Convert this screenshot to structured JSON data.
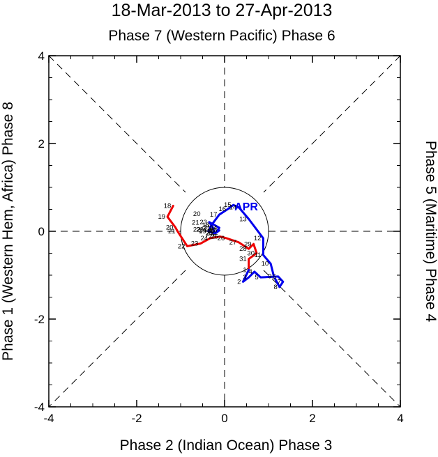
{
  "chart_data": {
    "type": "line",
    "title": "18-Mar-2013 to 27-Apr-2013",
    "subtitle": "Phase 7 (Western Pacific) Phase 6",
    "xlabel": "Phase 2 (Indian Ocean) Phase 3",
    "ylabel_left": "Phase 1 (Western Hem, Africa) Phase 8",
    "ylabel_right": "Phase 5 (Maritime) Phase 4",
    "xlim": [
      -4,
      4
    ],
    "ylim": [
      -4,
      4
    ],
    "xticks": [
      -4,
      -2,
      0,
      2,
      4
    ],
    "yticks": [
      -4,
      -2,
      0,
      2,
      4
    ],
    "xtick_labels": [
      "-4",
      "-2",
      "0",
      "2",
      "4"
    ],
    "ytick_labels": [
      "-4",
      "-2",
      "0",
      "2",
      "4"
    ],
    "unit_circle_radius": 1,
    "series": [
      {
        "name": "March",
        "color": "#ee0000",
        "points": [
          {
            "label": "18",
            "x": -1.17,
            "y": 0.58
          },
          {
            "label": "19",
            "x": -1.3,
            "y": 0.33
          },
          {
            "label": "20",
            "x": -1.12,
            "y": 0.09
          },
          {
            "label": "21",
            "x": -1.07,
            "y": 0.0
          },
          {
            "label": "22",
            "x": -0.85,
            "y": -0.34
          },
          {
            "label": "23",
            "x": -0.55,
            "y": -0.28
          },
          {
            "label": "24",
            "x": -0.33,
            "y": -0.16
          },
          {
            "label": "25",
            "x": -0.1,
            "y": -0.12
          },
          {
            "label": "26",
            "x": 0.05,
            "y": -0.16
          },
          {
            "label": "27",
            "x": 0.32,
            "y": -0.25
          },
          {
            "label": "28",
            "x": 0.55,
            "y": -0.4
          },
          {
            "label": "29",
            "x": 0.66,
            "y": -0.29
          },
          {
            "label": "30",
            "x": 0.73,
            "y": -0.5
          },
          {
            "label": "31",
            "x": 0.55,
            "y": -0.63
          }
        ],
        "extra_labels": [
          {
            "label": "20",
            "x": -0.5,
            "y": 0.4
          },
          {
            "label": "21",
            "x": -0.53,
            "y": 0.2
          },
          {
            "label": "22",
            "x": -0.5,
            "y": 0.04
          },
          {
            "label": "23",
            "x": -0.43,
            "y": 0.04
          },
          {
            "label": "24",
            "x": -0.37,
            "y": 0.02
          },
          {
            "label": "25",
            "x": -0.15,
            "y": -0.12
          }
        ]
      },
      {
        "name": "April",
        "color": "#0000ee",
        "month_label": "APR",
        "points": [
          {
            "label": "1",
            "x": 0.55,
            "y": -0.88
          },
          {
            "label": "2",
            "x": 0.42,
            "y": -1.15
          },
          {
            "label": "3",
            "x": 0.55,
            "y": -1.05
          },
          {
            "label": "4",
            "x": 0.68,
            "y": -0.92
          },
          {
            "label": "5",
            "x": 0.82,
            "y": -1.05
          },
          {
            "label": "6",
            "x": 1.22,
            "y": -1.03
          },
          {
            "label": "7",
            "x": 1.33,
            "y": -1.15
          },
          {
            "label": "8",
            "x": 1.25,
            "y": -1.27
          },
          {
            "label": "9",
            "x": 1.12,
            "y": -1.02
          },
          {
            "label": "10",
            "x": 1.05,
            "y": -0.74
          },
          {
            "label": "11",
            "x": 0.88,
            "y": -0.54
          },
          {
            "label": "12",
            "x": 0.88,
            "y": -0.16
          },
          {
            "label": "13",
            "x": 0.55,
            "y": 0.28
          },
          {
            "label": "14",
            "x": 0.32,
            "y": 0.55
          },
          {
            "label": "15",
            "x": 0.2,
            "y": 0.6
          },
          {
            "label": "16",
            "x": 0.08,
            "y": 0.51
          },
          {
            "label": "17",
            "x": -0.12,
            "y": 0.38
          },
          {
            "label": "18",
            "x": -0.3,
            "y": 0.14
          },
          {
            "label": "19",
            "x": -0.37,
            "y": 0.0
          },
          {
            "label": "20",
            "x": -0.22,
            "y": -0.05
          },
          {
            "label": "21",
            "x": -0.27,
            "y": 0.09
          },
          {
            "label": "22",
            "x": -0.25,
            "y": 0.06
          },
          {
            "label": "23",
            "x": -0.35,
            "y": 0.21
          },
          {
            "label": "24",
            "x": -0.12,
            "y": 0.08
          },
          {
            "label": "25",
            "x": -0.18,
            "y": 0.0
          },
          {
            "label": "26",
            "x": -0.12,
            "y": 0.02
          },
          {
            "label": "27",
            "x": -0.2,
            "y": -0.04
          }
        ]
      }
    ]
  }
}
